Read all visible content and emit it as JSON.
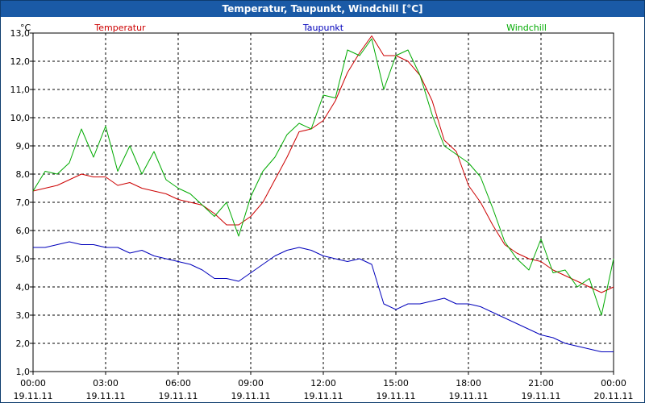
{
  "window": {
    "title": "Temperatur, Taupunkt, Windchill [°C]"
  },
  "chart_data": {
    "type": "line",
    "title": "Temperatur, Taupunkt, Windchill [°C]",
    "ylabel": "°C",
    "ylim": [
      1.0,
      13.0
    ],
    "yticks": [
      "1,0",
      "2,0",
      "3,0",
      "4,0",
      "5,0",
      "6,0",
      "7,0",
      "8,0",
      "9,0",
      "10,0",
      "11,0",
      "12,0",
      "13,0"
    ],
    "xlim": [
      0,
      24
    ],
    "xticks": [
      {
        "time": "00:00",
        "date": "19.11.11"
      },
      {
        "time": "03:00",
        "date": "19.11.11"
      },
      {
        "time": "06:00",
        "date": "19.11.11"
      },
      {
        "time": "09:00",
        "date": "19.11.11"
      },
      {
        "time": "12:00",
        "date": "19.11.11"
      },
      {
        "time": "15:00",
        "date": "19.11.11"
      },
      {
        "time": "18:00",
        "date": "19.11.11"
      },
      {
        "time": "21:00",
        "date": "19.11.11"
      },
      {
        "time": "00:00",
        "date": "20.11.11"
      }
    ],
    "grid": true,
    "legend_position": "top",
    "series": [
      {
        "name": "Temperatur",
        "color": "#cc0000",
        "x": [
          0,
          0.5,
          1,
          1.5,
          2,
          2.5,
          3,
          3.5,
          4,
          4.5,
          5,
          5.5,
          6,
          6.5,
          7,
          7.5,
          8,
          8.5,
          9,
          9.5,
          10,
          10.5,
          11,
          11.5,
          12,
          12.5,
          13,
          13.5,
          14,
          14.5,
          15,
          15.5,
          16,
          16.5,
          17,
          17.5,
          18,
          18.5,
          19,
          19.5,
          20,
          20.5,
          21,
          21.5,
          22,
          22.5,
          23,
          23.5,
          24
        ],
        "y": [
          7.4,
          7.5,
          7.6,
          7.8,
          8.0,
          7.9,
          7.9,
          7.6,
          7.7,
          7.5,
          7.4,
          7.3,
          7.1,
          7.0,
          6.9,
          6.6,
          6.2,
          6.2,
          6.5,
          7.0,
          7.8,
          8.6,
          9.5,
          9.6,
          9.9,
          10.6,
          11.6,
          12.3,
          12.9,
          12.2,
          12.2,
          12.0,
          11.5,
          10.6,
          9.2,
          8.8,
          7.6,
          7.0,
          6.2,
          5.5,
          5.2,
          5.0,
          4.9,
          4.6,
          4.4,
          4.2,
          4.0,
          3.8,
          4.0
        ]
      },
      {
        "name": "Taupunkt",
        "color": "#0000bb",
        "x": [
          0,
          0.5,
          1,
          1.5,
          2,
          2.5,
          3,
          3.5,
          4,
          4.5,
          5,
          5.5,
          6,
          6.5,
          7,
          7.5,
          8,
          8.5,
          9,
          9.5,
          10,
          10.5,
          11,
          11.5,
          12,
          12.5,
          13,
          13.5,
          14,
          14.5,
          15,
          15.5,
          16,
          16.5,
          17,
          17.5,
          18,
          18.5,
          19,
          19.5,
          20,
          20.5,
          21,
          21.5,
          22,
          22.5,
          23,
          23.5,
          24
        ],
        "y": [
          5.4,
          5.4,
          5.5,
          5.6,
          5.5,
          5.5,
          5.4,
          5.4,
          5.2,
          5.3,
          5.1,
          5.0,
          4.9,
          4.8,
          4.6,
          4.3,
          4.3,
          4.2,
          4.5,
          4.8,
          5.1,
          5.3,
          5.4,
          5.3,
          5.1,
          5.0,
          4.9,
          5.0,
          4.8,
          3.4,
          3.2,
          3.4,
          3.4,
          3.5,
          3.6,
          3.4,
          3.4,
          3.3,
          3.1,
          2.9,
          2.7,
          2.5,
          2.3,
          2.2,
          2.0,
          1.9,
          1.8,
          1.7,
          1.7
        ]
      },
      {
        "name": "Windchill",
        "color": "#00aa00",
        "x": [
          0,
          0.5,
          1,
          1.5,
          2,
          2.5,
          3,
          3.5,
          4,
          4.5,
          5,
          5.5,
          6,
          6.5,
          7,
          7.5,
          8,
          8.5,
          9,
          9.5,
          10,
          10.5,
          11,
          11.5,
          12,
          12.5,
          13,
          13.5,
          14,
          14.5,
          15,
          15.5,
          16,
          16.5,
          17,
          17.5,
          18,
          18.5,
          19,
          19.5,
          20,
          20.5,
          21,
          21.5,
          22,
          22.5,
          23,
          23.5,
          24
        ],
        "y": [
          7.4,
          8.1,
          8.0,
          8.4,
          9.6,
          8.6,
          9.7,
          8.1,
          9.0,
          8.0,
          8.8,
          7.8,
          7.5,
          7.3,
          6.9,
          6.5,
          7.0,
          5.8,
          7.2,
          8.1,
          8.6,
          9.4,
          9.8,
          9.6,
          10.8,
          10.7,
          12.4,
          12.2,
          12.8,
          11.0,
          12.2,
          12.4,
          11.5,
          10.1,
          9.0,
          8.7,
          8.4,
          7.9,
          6.8,
          5.6,
          5.0,
          4.6,
          5.7,
          4.5,
          4.6,
          4.0,
          4.3,
          3.0,
          5.0
        ]
      }
    ]
  }
}
